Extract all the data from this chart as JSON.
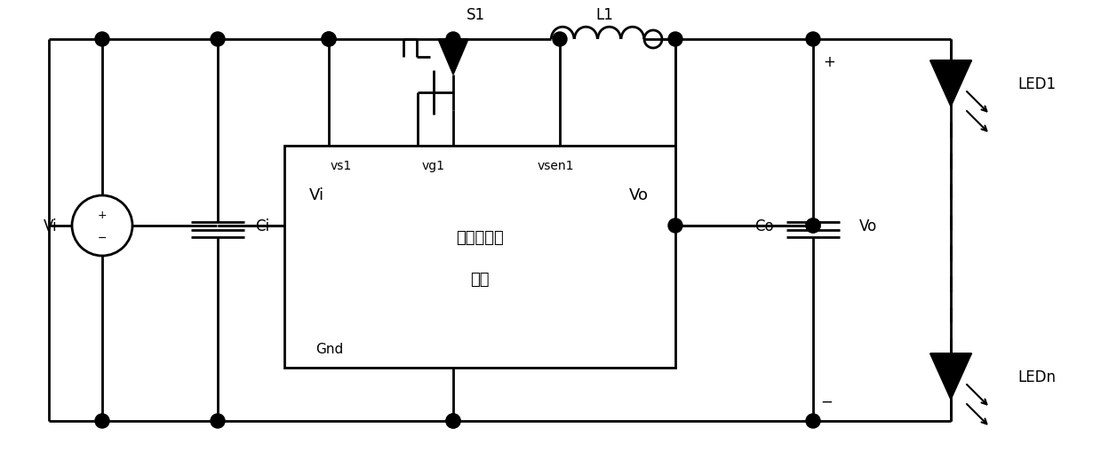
{
  "bg_color": "#ffffff",
  "line_color": "#000000",
  "lw": 2.0,
  "fig_width": 12.39,
  "fig_height": 5.1,
  "labels": {
    "Vi_source": "Vi",
    "Ci": "Ci",
    "S1": "S1",
    "L1": "L1",
    "Co": "Co",
    "Vo_label": "Vo",
    "LED1": "LED1",
    "LEDn": "LEDn",
    "plus": "+",
    "minus": "−",
    "vs1": "vs1",
    "vg1": "vg1",
    "vsen1": "vsen1",
    "Vi_pin": "Vi",
    "Vo_pin": "Vo",
    "Gnd": "Gnd",
    "box_line1": "多功能控制",
    "box_line2": "电路"
  }
}
